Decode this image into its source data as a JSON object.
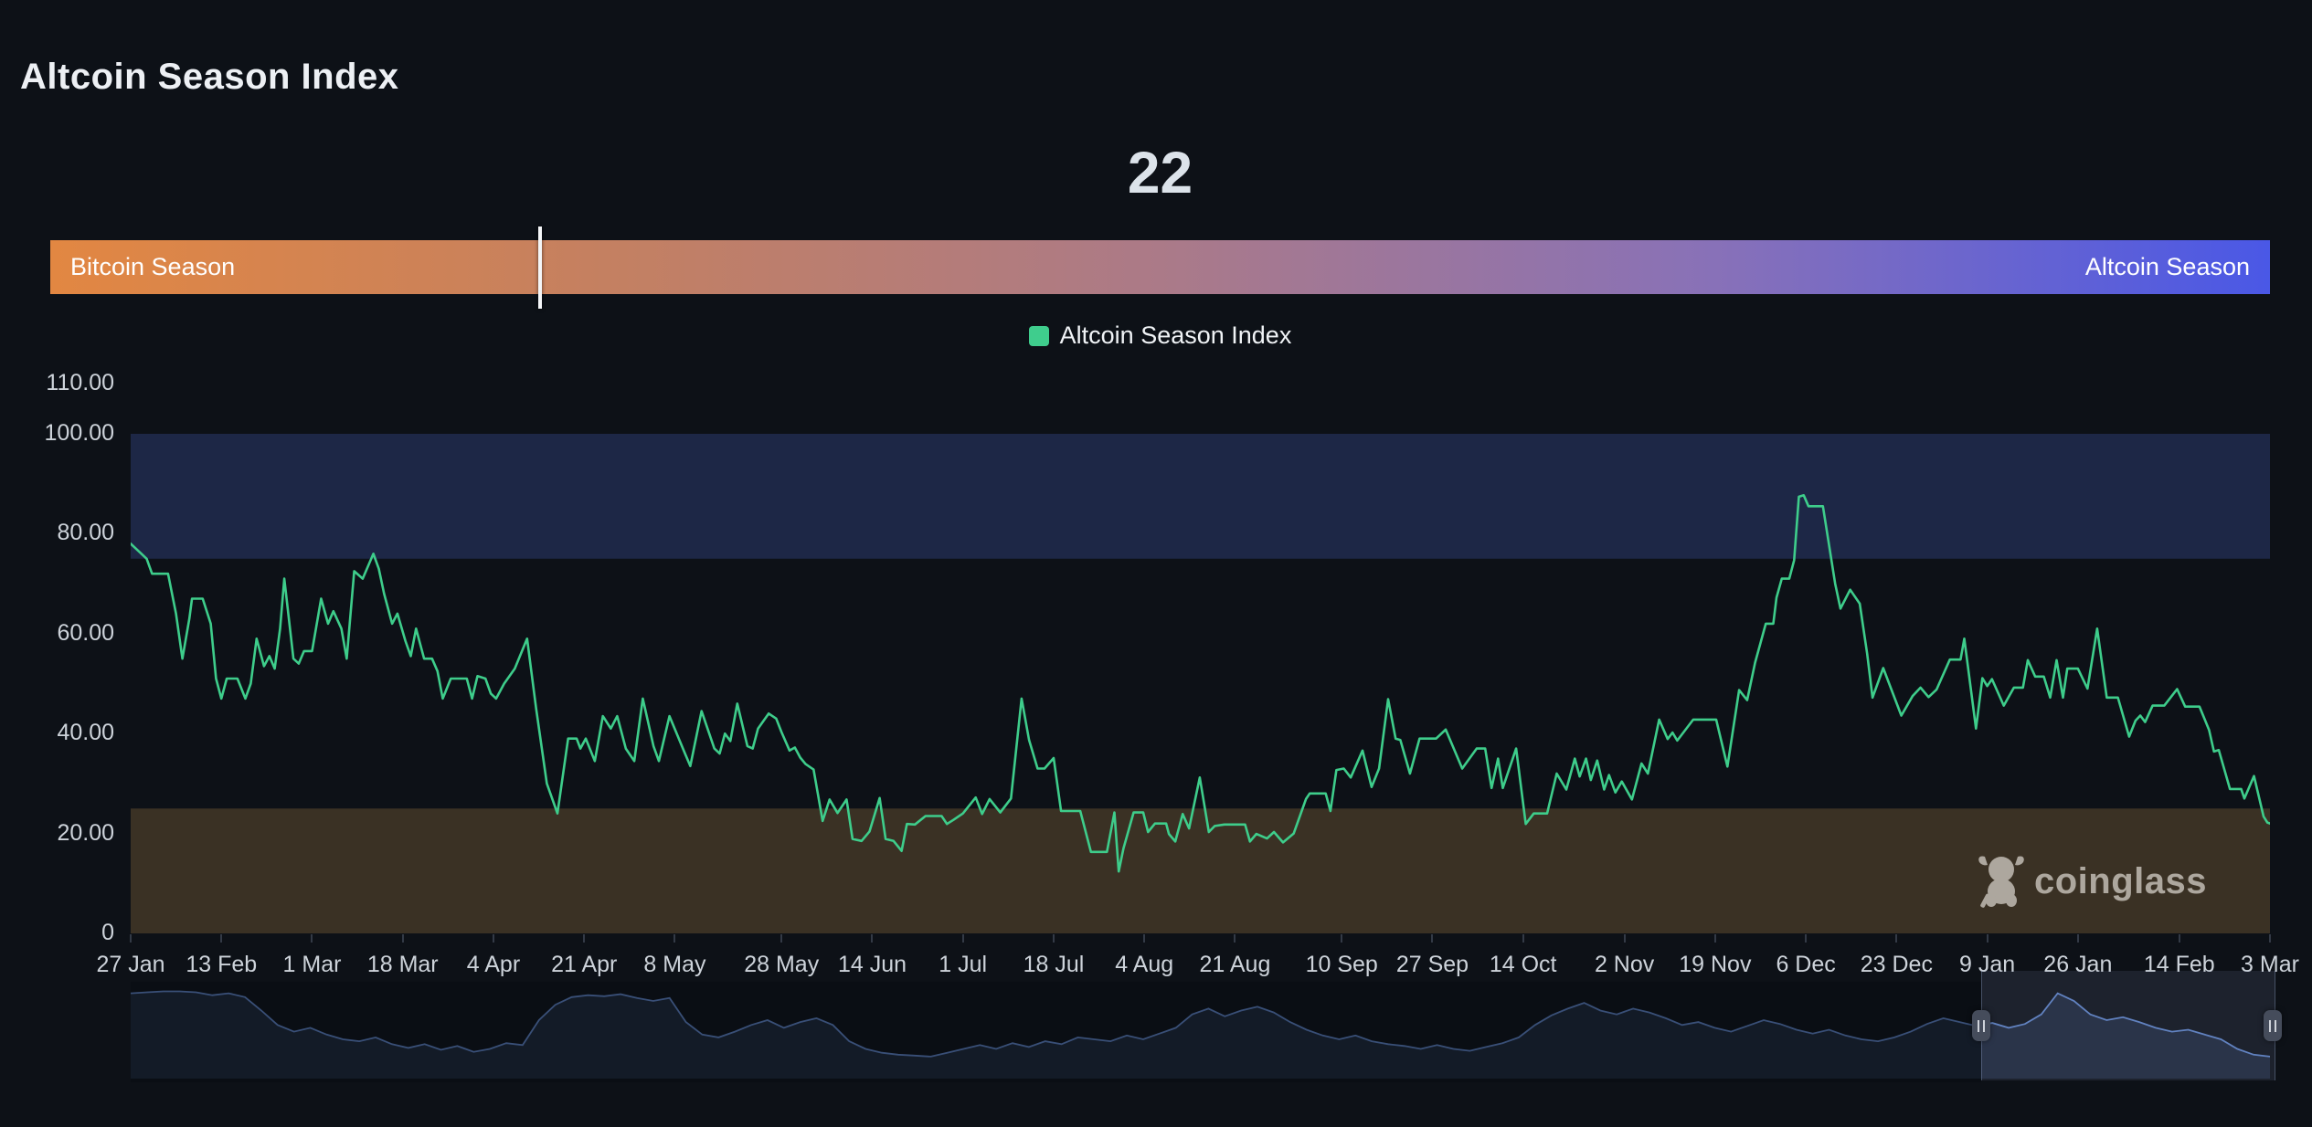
{
  "page": {
    "title": "Altcoin Season Index",
    "background": "#0d1117"
  },
  "gauge": {
    "value": "22",
    "left_label": "Bitcoin Season",
    "right_label": "Altcoin Season",
    "marker_percent": 22,
    "gradient_colors": [
      "#e28742",
      "#c48061",
      "#ab7a88",
      "#8871b8",
      "#4a58e6"
    ]
  },
  "legend": {
    "label": "Altcoin Season Index",
    "swatch_color": "#3fcd8d"
  },
  "watermark": {
    "text": "coinglass",
    "color": "#b7b1a9"
  },
  "chart_data": {
    "type": "line",
    "title": "Altcoin Season Index",
    "series_name": "Altcoin Season Index",
    "line_color": "#3ecd8b",
    "current_value": 22,
    "ylim": [
      0,
      110
    ],
    "grid": false,
    "legend_position": "top-center",
    "y_ticks": [
      {
        "label": "110.00",
        "value": 110
      },
      {
        "label": "100.00",
        "value": 100
      },
      {
        "label": "80.00",
        "value": 80
      },
      {
        "label": "60.00",
        "value": 60
      },
      {
        "label": "40.00",
        "value": 40
      },
      {
        "label": "20.00",
        "value": 20
      },
      {
        "label": "0",
        "value": 0
      }
    ],
    "x_ticks": [
      {
        "label": "27 Jan",
        "day": 0
      },
      {
        "label": "13 Feb",
        "day": 17
      },
      {
        "label": "1 Mar",
        "day": 34
      },
      {
        "label": "18 Mar",
        "day": 51
      },
      {
        "label": "4 Apr",
        "day": 68
      },
      {
        "label": "21 Apr",
        "day": 85
      },
      {
        "label": "8 May",
        "day": 102
      },
      {
        "label": "28 May",
        "day": 122
      },
      {
        "label": "14 Jun",
        "day": 139
      },
      {
        "label": "1 Jul",
        "day": 156
      },
      {
        "label": "18 Jul",
        "day": 173
      },
      {
        "label": "4 Aug",
        "day": 190
      },
      {
        "label": "21 Aug",
        "day": 207
      },
      {
        "label": "10 Sep",
        "day": 227
      },
      {
        "label": "27 Sep",
        "day": 244
      },
      {
        "label": "14 Oct",
        "day": 261
      },
      {
        "label": "2 Nov",
        "day": 280
      },
      {
        "label": "19 Nov",
        "day": 297
      },
      {
        "label": "6 Dec",
        "day": 314
      },
      {
        "label": "23 Dec",
        "day": 331
      },
      {
        "label": "9 Jan",
        "day": 348
      },
      {
        "label": "26 Jan",
        "day": 365
      },
      {
        "label": "14 Feb",
        "day": 384
      },
      {
        "label": "3 Mar",
        "day": 401
      }
    ],
    "zones": [
      {
        "name": "altcoin-season-zone",
        "from": 75,
        "to": 100,
        "color": "#1d2746"
      },
      {
        "name": "bitcoin-season-zone",
        "from": 0,
        "to": 25,
        "color": "#3a3124"
      }
    ],
    "points": [
      [
        0,
        78
      ],
      [
        2,
        76
      ],
      [
        3,
        75
      ],
      [
        4,
        72
      ],
      [
        7,
        72
      ],
      [
        8.5,
        64
      ],
      [
        9.7,
        55
      ],
      [
        11,
        63
      ],
      [
        11.5,
        67
      ],
      [
        13.5,
        67
      ],
      [
        15,
        62
      ],
      [
        16,
        51
      ],
      [
        17,
        47
      ],
      [
        18,
        51
      ],
      [
        20,
        51
      ],
      [
        21.5,
        47
      ],
      [
        22.5,
        50
      ],
      [
        23.6,
        59
      ],
      [
        25,
        53.5
      ],
      [
        26,
        55.5
      ],
      [
        27,
        53
      ],
      [
        28,
        61
      ],
      [
        28.8,
        71
      ],
      [
        30.5,
        55
      ],
      [
        31.5,
        54
      ],
      [
        32.5,
        56.5
      ],
      [
        34,
        56.5
      ],
      [
        35.7,
        67
      ],
      [
        37,
        62
      ],
      [
        38,
        64.5
      ],
      [
        39.5,
        61
      ],
      [
        40.5,
        55
      ],
      [
        41.9,
        72.5
      ],
      [
        43.5,
        71
      ],
      [
        45.5,
        76
      ],
      [
        46.5,
        73
      ],
      [
        47.5,
        68
      ],
      [
        49,
        62
      ],
      [
        50,
        64
      ],
      [
        51.5,
        58.5
      ],
      [
        52.5,
        55.5
      ],
      [
        53.5,
        61
      ],
      [
        55,
        55
      ],
      [
        56.5,
        55
      ],
      [
        57.5,
        52.5
      ],
      [
        58.5,
        47
      ],
      [
        60,
        51
      ],
      [
        63,
        51
      ],
      [
        64,
        47
      ],
      [
        65,
        51.5
      ],
      [
        66.5,
        51
      ],
      [
        67.5,
        48
      ],
      [
        68.5,
        47
      ],
      [
        70,
        50
      ],
      [
        72,
        53
      ],
      [
        74.3,
        59
      ],
      [
        76,
        45
      ],
      [
        78,
        30
      ],
      [
        80,
        24
      ],
      [
        82,
        39
      ],
      [
        83.6,
        39
      ],
      [
        84.3,
        37
      ],
      [
        85.3,
        39
      ],
      [
        87,
        34.5
      ],
      [
        88.5,
        43.5
      ],
      [
        90,
        41
      ],
      [
        91.2,
        43.5
      ],
      [
        92.8,
        37
      ],
      [
        94.4,
        34.5
      ],
      [
        96,
        47
      ],
      [
        98,
        37.5
      ],
      [
        99,
        34.5
      ],
      [
        101,
        43.5
      ],
      [
        103.9,
        36
      ],
      [
        104.9,
        33.5
      ],
      [
        107,
        44.5
      ],
      [
        109.4,
        37
      ],
      [
        110.4,
        36
      ],
      [
        111.4,
        40
      ],
      [
        112.4,
        38.5
      ],
      [
        113.7,
        46
      ],
      [
        115.6,
        37.5
      ],
      [
        116.6,
        37
      ],
      [
        117.6,
        41
      ],
      [
        119.6,
        44
      ],
      [
        121,
        43
      ],
      [
        122,
        40.3
      ],
      [
        123.5,
        36.6
      ],
      [
        124.5,
        37.2
      ],
      [
        125.5,
        35.2
      ],
      [
        126.5,
        33.9
      ],
      [
        128,
        32.8
      ],
      [
        129.7,
        22.5
      ],
      [
        131,
        26.8
      ],
      [
        132.5,
        24.1
      ],
      [
        134.2,
        26.8
      ],
      [
        135.3,
        18.9
      ],
      [
        137,
        18.5
      ],
      [
        138.5,
        20.4
      ],
      [
        140.4,
        27.1
      ],
      [
        141.5,
        18.9
      ],
      [
        143,
        18.5
      ],
      [
        144.5,
        16.5
      ],
      [
        145.5,
        21.9
      ],
      [
        147,
        21.8
      ],
      [
        149,
        23.5
      ],
      [
        152,
        23.5
      ],
      [
        153,
        21.9
      ],
      [
        154.2,
        22.7
      ],
      [
        156,
        24
      ],
      [
        158.4,
        27.2
      ],
      [
        159.6,
        23.9
      ],
      [
        161,
        26.9
      ],
      [
        163,
        24.2
      ],
      [
        165,
        27
      ],
      [
        167,
        47
      ],
      [
        168.4,
        38.7
      ],
      [
        170,
        33
      ],
      [
        171.3,
        33
      ],
      [
        173,
        35.1
      ],
      [
        174.4,
        24.5
      ],
      [
        178,
        24.5
      ],
      [
        180,
        16.3
      ],
      [
        183,
        16.3
      ],
      [
        184.4,
        24.2
      ],
      [
        185.2,
        12.4
      ],
      [
        186.1,
        17
      ],
      [
        188,
        24.2
      ],
      [
        189.8,
        24.2
      ],
      [
        190.7,
        20.3
      ],
      [
        192,
        22
      ],
      [
        194.1,
        22
      ],
      [
        194.6,
        19.9
      ],
      [
        195.8,
        18.4
      ],
      [
        197.2,
        23.9
      ],
      [
        198.4,
        21
      ],
      [
        200.4,
        31.2
      ],
      [
        202.1,
        20.3
      ],
      [
        203.2,
        21.5
      ],
      [
        205,
        21.8
      ],
      [
        208.9,
        21.8
      ],
      [
        209.8,
        18.4
      ],
      [
        211,
        19.9
      ],
      [
        213,
        19
      ],
      [
        214.3,
        20.3
      ],
      [
        216,
        18.2
      ],
      [
        218,
        20
      ],
      [
        220.3,
        26.9
      ],
      [
        221,
        28
      ],
      [
        224,
        28
      ],
      [
        224.9,
        24.5
      ],
      [
        226,
        32.7
      ],
      [
        227.4,
        33
      ],
      [
        228.7,
        31.2
      ],
      [
        230.9,
        36.6
      ],
      [
        232.6,
        29.3
      ],
      [
        234,
        33
      ],
      [
        235.7,
        46.9
      ],
      [
        237.1,
        39
      ],
      [
        238,
        38.7
      ],
      [
        239.8,
        32
      ],
      [
        241.6,
        39
      ],
      [
        244.7,
        39
      ],
      [
        246.5,
        40.8
      ],
      [
        249.6,
        33
      ],
      [
        252.3,
        37
      ],
      [
        253.9,
        37
      ],
      [
        255.1,
        29.1
      ],
      [
        256.3,
        35
      ],
      [
        257.2,
        29.1
      ],
      [
        259.7,
        37
      ],
      [
        261.5,
        21.9
      ],
      [
        263,
        24
      ],
      [
        265.5,
        24
      ],
      [
        267.3,
        32
      ],
      [
        269.1,
        28.8
      ],
      [
        270.7,
        35
      ],
      [
        271.6,
        31.4
      ],
      [
        272.8,
        35
      ],
      [
        273.7,
        30.7
      ],
      [
        274.9,
        34.6
      ],
      [
        276.2,
        28.8
      ],
      [
        277.1,
        31.7
      ],
      [
        278.3,
        28.2
      ],
      [
        279.5,
        30.4
      ],
      [
        281.4,
        26.8
      ],
      [
        283.2,
        34
      ],
      [
        284.4,
        32
      ],
      [
        286.5,
        42.8
      ],
      [
        288.1,
        38.9
      ],
      [
        289,
        40.2
      ],
      [
        289.9,
        38.6
      ],
      [
        292.9,
        42.8
      ],
      [
        297.2,
        42.8
      ],
      [
        299.3,
        33.4
      ],
      [
        301.5,
        48.7
      ],
      [
        303,
        46.7
      ],
      [
        304.5,
        54.2
      ],
      [
        306.5,
        62
      ],
      [
        307.9,
        62
      ],
      [
        308.5,
        67.2
      ],
      [
        309.5,
        71
      ],
      [
        310.9,
        71
      ],
      [
        311.8,
        74.7
      ],
      [
        312.7,
        87.4
      ],
      [
        313.6,
        87.7
      ],
      [
        314.5,
        85.5
      ],
      [
        317.2,
        85.5
      ],
      [
        319.5,
        70
      ],
      [
        320.5,
        65
      ],
      [
        322.3,
        68.8
      ],
      [
        324.1,
        66
      ],
      [
        325.5,
        56
      ],
      [
        326.5,
        47.2
      ],
      [
        328.5,
        53.1
      ],
      [
        331.9,
        43.6
      ],
      [
        334,
        47.5
      ],
      [
        335.5,
        49.2
      ],
      [
        337,
        47.3
      ],
      [
        338.5,
        48.8
      ],
      [
        341,
        54.8
      ],
      [
        343,
        54.8
      ],
      [
        343.7,
        59
      ],
      [
        345.9,
        41
      ],
      [
        347.1,
        51.1
      ],
      [
        348,
        49.5
      ],
      [
        348.9,
        50.9
      ],
      [
        351.1,
        45.6
      ],
      [
        353,
        49.2
      ],
      [
        354.7,
        49.2
      ],
      [
        355.6,
        54.7
      ],
      [
        357,
        51.4
      ],
      [
        358.6,
        51.4
      ],
      [
        359.8,
        47.2
      ],
      [
        361,
        54.7
      ],
      [
        362.2,
        47.2
      ],
      [
        363,
        53
      ],
      [
        365,
        53
      ],
      [
        366.8,
        49
      ],
      [
        368.6,
        61
      ],
      [
        370.4,
        47.2
      ],
      [
        372.5,
        47.2
      ],
      [
        374.6,
        39.4
      ],
      [
        375.8,
        42.6
      ],
      [
        376.7,
        43.6
      ],
      [
        377.6,
        42.3
      ],
      [
        379,
        45.6
      ],
      [
        381.2,
        45.6
      ],
      [
        383.6,
        48.9
      ],
      [
        385.1,
        45.4
      ],
      [
        387.8,
        45.4
      ],
      [
        389.6,
        40.7
      ],
      [
        390.5,
        36.4
      ],
      [
        391.4,
        36.7
      ],
      [
        393.5,
        28.9
      ],
      [
        395.6,
        28.9
      ],
      [
        396.2,
        27
      ],
      [
        398,
        31.5
      ],
      [
        399.8,
        23.4
      ],
      [
        400.5,
        22.2
      ],
      [
        401,
        22
      ]
    ],
    "navigator": {
      "line_color": "#5d80c2",
      "fill_color": "#1d2637",
      "selection_fraction": [
        0.865,
        1.0
      ],
      "values": [
        88,
        89,
        90,
        90,
        89,
        86,
        88,
        84,
        70,
        55,
        48,
        52,
        45,
        40,
        38,
        42,
        35,
        31,
        35,
        29,
        33,
        27,
        30,
        36,
        34,
        60,
        76,
        84,
        86,
        85,
        87,
        83,
        80,
        83,
        58,
        45,
        42,
        48,
        55,
        60,
        52,
        58,
        62,
        55,
        38,
        30,
        26,
        24,
        23,
        22,
        26,
        30,
        34,
        30,
        36,
        32,
        38,
        35,
        42,
        40,
        38,
        44,
        40,
        46,
        52,
        66,
        72,
        64,
        70,
        74,
        68,
        58,
        50,
        44,
        40,
        44,
        38,
        35,
        33,
        30,
        34,
        30,
        28,
        32,
        36,
        42,
        55,
        65,
        72,
        78,
        70,
        66,
        72,
        68,
        62,
        55,
        58,
        52,
        48,
        54,
        60,
        56,
        50,
        46,
        50,
        44,
        40,
        38,
        42,
        48,
        56,
        62,
        58,
        54,
        57,
        52,
        56,
        66,
        88,
        80,
        66,
        60,
        63,
        58,
        52,
        48,
        50,
        45,
        40,
        30,
        24,
        22
      ]
    }
  }
}
